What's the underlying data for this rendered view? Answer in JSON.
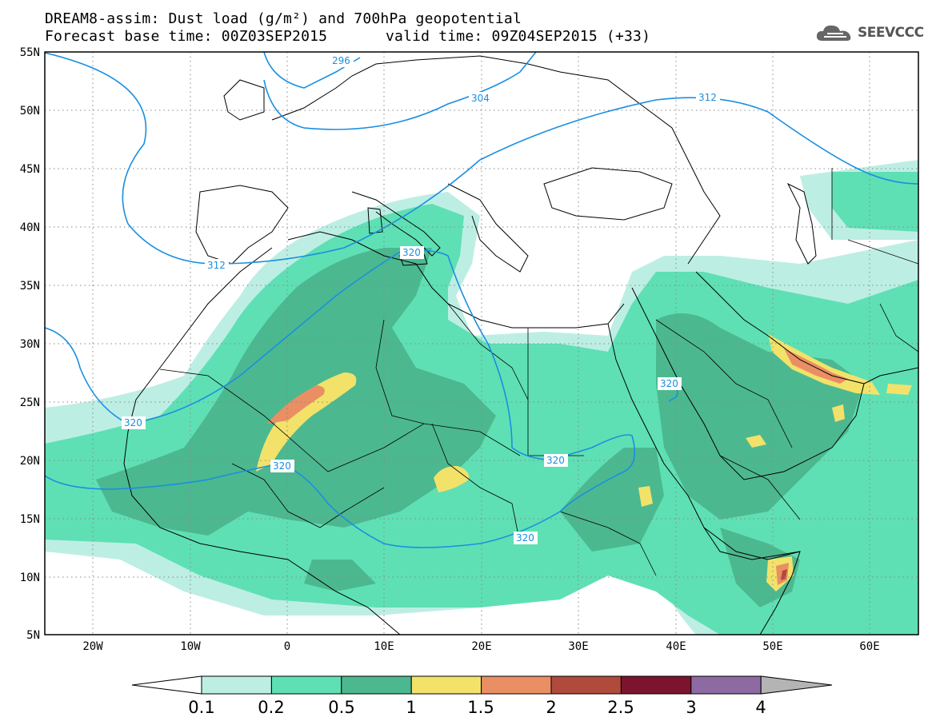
{
  "title_line1": "DREAM8-assim: Dust load (g/m²) and 700hPa geopotential",
  "title_base": "Forecast base time: 00Z03SEP2015",
  "title_valid": "valid time: 09Z04SEP2015 (+33)",
  "logo_text": "SEEVCCC",
  "logo_icon": "cloud-icon",
  "map": {
    "lon_range": [
      -25,
      65
    ],
    "lat_range": [
      5,
      55
    ],
    "lat_ticks": [
      "55N",
      "50N",
      "45N",
      "40N",
      "35N",
      "30N",
      "25N",
      "20N",
      "15N",
      "10N",
      "5N"
    ],
    "lon_ticks": [
      "20W",
      "10W",
      "0",
      "10E",
      "20E",
      "30E",
      "40E",
      "50E",
      "60E"
    ],
    "contour_labels": [
      "296",
      "304",
      "312",
      "312",
      "320",
      "320",
      "320",
      "320",
      "320"
    ],
    "contour_color": "#1a8fe0"
  },
  "colorbar": {
    "labels": [
      "0.1",
      "0.2",
      "0.5",
      "1",
      "1.5",
      "2",
      "2.5",
      "3",
      "4"
    ],
    "colors": [
      "#ffffff",
      "#bdeee4",
      "#5ee0b4",
      "#4cb890",
      "#f2e26a",
      "#ea8e64",
      "#b04a3c",
      "#7c1430",
      "#8e6aa2",
      "#b4b4b4"
    ]
  }
}
